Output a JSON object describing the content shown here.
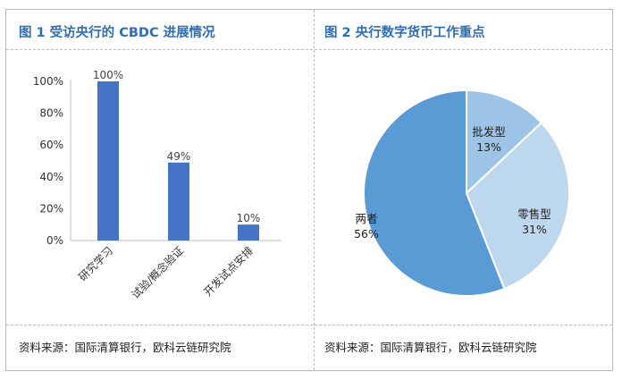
{
  "left_panel": {
    "title": "图 1 受访央行的 CBDC 进展情况",
    "source": "资料来源：国际清算银行，欧科云链研究院"
  },
  "right_panel": {
    "title": "图 2 央行数字货币工作重点",
    "source": "资料来源：国际清算银行，欧科云链研究院"
  },
  "colors": {
    "bar": "#4472c4",
    "title": "#2f6db5"
  },
  "chart_data": [
    {
      "type": "bar",
      "categories": [
        "研究学习",
        "试验/概念验证",
        "开发试点安排"
      ],
      "values": [
        100,
        49,
        10
      ],
      "value_labels": [
        "100%",
        "49%",
        "10%"
      ],
      "yticks": [
        "0%",
        "20%",
        "40%",
        "60%",
        "80%",
        "100%"
      ],
      "ylim": [
        0,
        100
      ],
      "grid": false
    },
    {
      "type": "pie",
      "slices": [
        {
          "label": "批发型",
          "value_label": "13%",
          "value": 13,
          "color": "#9dc3e6"
        },
        {
          "label": "零售型",
          "value_label": "31%",
          "value": 31,
          "color": "#bdd7ee"
        },
        {
          "label": "两者",
          "value_label": "56%",
          "value": 56,
          "color": "#5b9bd5"
        }
      ]
    }
  ]
}
